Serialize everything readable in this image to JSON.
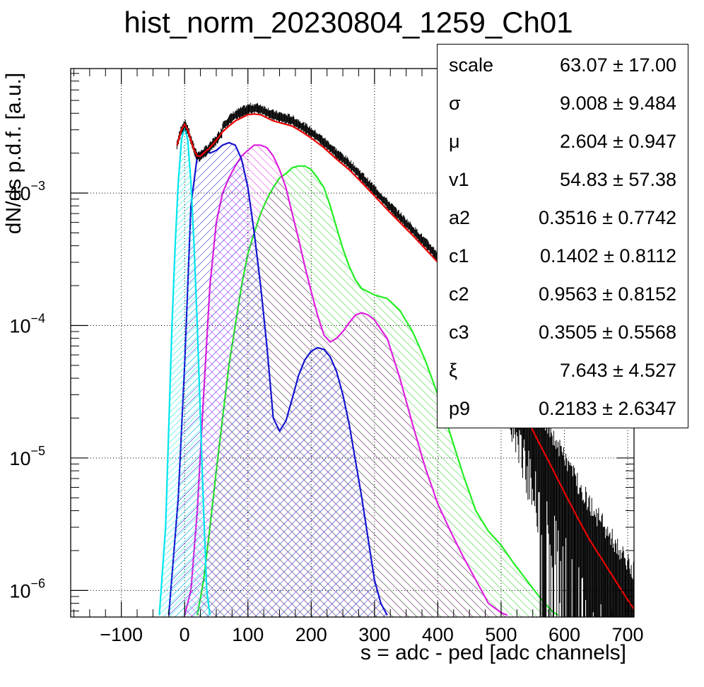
{
  "chart_data": {
    "type": "line",
    "title": "hist_norm_20230804_1259_Ch01",
    "xlabel": "s = adc - ped [adc channels]",
    "ylabel": "dN/ds p.d.f. [a.u.]",
    "xlim": [
      -180,
      710
    ],
    "ylim": [
      6.3e-07,
      0.0087
    ],
    "yscale": "log",
    "grid": true,
    "x_ticks": [
      -100,
      0,
      100,
      200,
      300,
      400,
      500,
      600,
      700
    ],
    "y_ticks": [
      {
        "value": 1e-06,
        "base": "10",
        "exp": "−6"
      },
      {
        "value": 1e-05,
        "base": "10",
        "exp": "−5"
      },
      {
        "value": 0.0001,
        "base": "10",
        "exp": "−4"
      },
      {
        "value": 0.001,
        "base": "10",
        "exp": "−3"
      }
    ],
    "colors": {
      "data": "#000000",
      "fit": "#ee0000",
      "pe0": "#00e5ee",
      "pe1": "#1515d0",
      "pe2": "#e020e0",
      "pe3": "#22ee22"
    },
    "series": [
      {
        "key": "fit",
        "x": [
          -12,
          -5,
          0,
          5,
          10,
          15,
          20,
          25,
          30,
          40,
          50,
          60,
          70,
          80,
          90,
          100,
          110,
          120,
          130,
          140,
          150,
          160,
          170,
          180,
          190,
          200,
          220,
          240,
          260,
          280,
          300,
          320,
          340,
          360,
          380,
          400,
          420,
          440,
          460,
          480,
          500,
          520,
          540,
          560,
          580,
          600,
          620,
          640,
          660,
          680,
          700,
          712
        ],
        "y": [
          0.0023,
          0.003,
          0.0033,
          0.003,
          0.0025,
          0.0021,
          0.0019,
          0.0019,
          0.002,
          0.0022,
          0.0025,
          0.0029,
          0.0032,
          0.0035,
          0.0037,
          0.0039,
          0.00395,
          0.0039,
          0.0037,
          0.0035,
          0.0034,
          0.0033,
          0.0032,
          0.003,
          0.0028,
          0.0026,
          0.0022,
          0.0018,
          0.0015,
          0.0012,
          0.00095,
          0.00075,
          0.0006,
          0.00048,
          0.00038,
          0.0003,
          0.00022,
          0.00016,
          0.00011,
          7.5e-05,
          5e-05,
          3.2e-05,
          2e-05,
          1.3e-05,
          8.5e-06,
          5.5e-06,
          3.6e-06,
          2.4e-06,
          1.7e-06,
          1.2e-06,
          8.5e-07,
          7e-07
        ]
      },
      {
        "key": "pe0",
        "x": [
          -40,
          -30,
          -20,
          -15,
          -10,
          -5,
          0,
          5,
          10,
          15,
          20,
          25,
          30,
          35,
          40
        ],
        "y": [
          6.5e-07,
          3e-06,
          0.0001,
          0.0004,
          0.0012,
          0.0025,
          0.0032,
          0.0025,
          0.0012,
          0.0004,
          0.0001,
          2e-05,
          4e-06,
          1e-06,
          6.5e-07
        ]
      },
      {
        "key": "pe1",
        "x": [
          -25,
          -10,
          0,
          10,
          20,
          30,
          40,
          50,
          60,
          70,
          80,
          90,
          100,
          110,
          120,
          130,
          140,
          150,
          160,
          170,
          180,
          190,
          200,
          210,
          220,
          230,
          240,
          250,
          260,
          280,
          300,
          310,
          320
        ],
        "y": [
          6.5e-07,
          5e-06,
          5e-05,
          0.0008,
          0.0019,
          0.0021,
          0.002,
          0.0021,
          0.0023,
          0.0024,
          0.0023,
          0.0018,
          0.0011,
          0.0005,
          0.0002,
          7e-05,
          2e-05,
          1.6e-05,
          1.9e-05,
          2.8e-05,
          4.2e-05,
          5.5e-05,
          6.4e-05,
          6.8e-05,
          6.6e-05,
          5.8e-05,
          4.5e-05,
          3e-05,
          1.8e-05,
          5e-06,
          1.2e-06,
          8e-07,
          6.5e-07
        ]
      },
      {
        "key": "pe2",
        "x": [
          0,
          10,
          20,
          30,
          40,
          50,
          60,
          70,
          80,
          90,
          100,
          110,
          120,
          130,
          140,
          150,
          160,
          170,
          180,
          190,
          200,
          210,
          220,
          230,
          240,
          250,
          260,
          270,
          280,
          290,
          300,
          320,
          340,
          360,
          380,
          400,
          420,
          440,
          460,
          480,
          500,
          510
        ],
        "y": [
          6.5e-07,
          1e-06,
          4e-06,
          3e-05,
          0.0002,
          0.0006,
          0.001,
          0.0013,
          0.0016,
          0.0019,
          0.0021,
          0.0023,
          0.0023,
          0.0022,
          0.0019,
          0.0015,
          0.0011,
          0.0007,
          0.00045,
          0.00028,
          0.00018,
          0.00012,
          8.5e-05,
          7.5e-05,
          8e-05,
          9e-05,
          0.000105,
          0.00012,
          0.000125,
          0.00012,
          0.00011,
          8e-05,
          4e-05,
          1.8e-05,
          8.5e-06,
          4.5e-06,
          2.8e-06,
          1.8e-06,
          1.2e-06,
          8e-07,
          6.8e-07,
          6.5e-07
        ]
      },
      {
        "key": "pe3",
        "x": [
          20,
          30,
          40,
          50,
          60,
          70,
          80,
          90,
          100,
          110,
          120,
          130,
          140,
          150,
          160,
          170,
          180,
          190,
          200,
          210,
          220,
          230,
          240,
          250,
          260,
          270,
          280,
          290,
          300,
          320,
          340,
          360,
          380,
          400,
          420,
          440,
          460,
          480,
          500,
          520,
          540,
          560,
          580,
          590
        ],
        "y": [
          6.5e-07,
          1.2e-06,
          3e-06,
          8e-06,
          2e-05,
          5e-05,
          0.0001,
          0.0002,
          0.00035,
          0.0005,
          0.0007,
          0.0009,
          0.0011,
          0.0013,
          0.0014,
          0.00155,
          0.0016,
          0.0016,
          0.0015,
          0.0013,
          0.0011,
          0.0008,
          0.00055,
          0.00038,
          0.00028,
          0.00022,
          0.00019,
          0.00018,
          0.00017,
          0.00016,
          0.00013,
          9e-05,
          5.5e-05,
          3e-05,
          1.5e-05,
          7.5e-06,
          4e-06,
          2.8e-06,
          2.2e-06,
          1.6e-06,
          1.2e-06,
          9e-07,
          7e-07,
          6.5e-07
        ]
      }
    ]
  },
  "stats": {
    "rows": [
      {
        "name": "scale",
        "value": "63.07 ± 17.00"
      },
      {
        "name": "σ",
        "value": "9.008 ± 9.484"
      },
      {
        "name": "μ",
        "value": "2.604 ± 0.947"
      },
      {
        "name": "v1",
        "value": "54.83 ± 57.38"
      },
      {
        "name": "a2",
        "value": "0.3516 ± 0.7742"
      },
      {
        "name": "c1",
        "value": "0.1402 ± 0.8112"
      },
      {
        "name": "c2",
        "value": "0.9563 ± 0.8152"
      },
      {
        "name": "c3",
        "value": "0.3505 ± 0.5568"
      },
      {
        "name": "ξ",
        "value": "7.643 ± 4.527"
      },
      {
        "name": "p9",
        "value": "0.2183 ± 2.6347"
      }
    ]
  }
}
